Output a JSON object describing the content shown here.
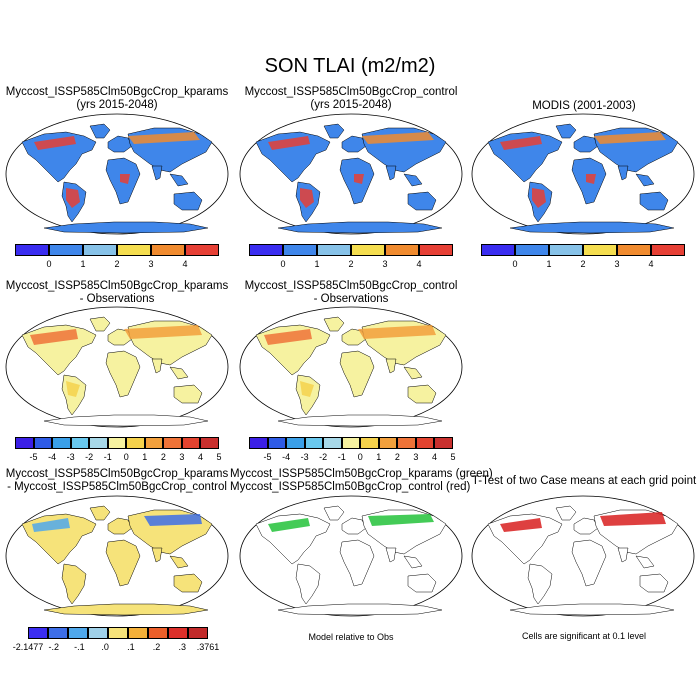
{
  "title": "SON TLAI (m2/m2)",
  "colors": {
    "abs": [
      "#3a2df0",
      "#3f86ea",
      "#87c2e8",
      "#f5de50",
      "#f08b2f",
      "#e64035"
    ],
    "diff": [
      "#3b1fe6",
      "#2e5be6",
      "#3a9fe8",
      "#69c8ee",
      "#a7d8e8",
      "#f6f2a0",
      "#f5d24c",
      "#f2a03c",
      "#ef7338",
      "#e3432f",
      "#c9302e"
    ],
    "casediff": [
      "#3b2df2",
      "#3d6ee8",
      "#4fa8ec",
      "#9fd0e8",
      "#f6e37a",
      "#f4b039",
      "#ec5f2a",
      "#dc2f2a",
      "#c22a2a"
    ],
    "ocean": "#ffffff",
    "land_outline": "#000000"
  },
  "panels": [
    {
      "id": "p1",
      "title1": "Myccost_ISSP585Clm50BgcCrop_kparams",
      "title2": "(yrs 2015-2048)",
      "fill": "#3f86ea"
    },
    {
      "id": "p2",
      "title1": "Myccost_ISSP585Clm50BgcCrop_control",
      "title2": "(yrs 2015-2048)",
      "fill": "#3f86ea"
    },
    {
      "id": "p3",
      "title1": "MODIS (2001-2003)",
      "title2": "",
      "fill": "#3f86ea"
    },
    {
      "id": "p4",
      "title1": "Myccost_ISSP585Clm50BgcCrop_kparams",
      "title2": "- Observations",
      "fill": "#f6f2a0"
    },
    {
      "id": "p5",
      "title1": "Myccost_ISSP585Clm50BgcCrop_control",
      "title2": "- Observations",
      "fill": "#f6f2a0"
    },
    {
      "id": "p7",
      "title1": "Myccost_ISSP585Clm50BgcCrop_kparams",
      "title2": "- Myccost_ISSP585Clm50BgcCrop_control",
      "fill": "#f6e37a"
    },
    {
      "id": "p8",
      "title1": "Myccost_ISSP585Clm50BgcCrop_kparams (green)",
      "title2": "Myccost_ISSP585Clm50BgcCrop_control (red)",
      "fill": "#ffffff"
    },
    {
      "id": "p9",
      "title1": "T-Test of two Case means at each grid point",
      "title2": "",
      "fill": "#ffffff"
    }
  ],
  "colorbars": {
    "abs_labels": [
      "0",
      "1",
      "2",
      "3",
      "4"
    ],
    "diff_labels": [
      "-5",
      "-4",
      "-3",
      "-2",
      "-1",
      "0",
      "1",
      "2",
      "3",
      "4",
      "5"
    ],
    "casediff_labels": [
      "-2.1477",
      "-.2",
      "-.1",
      ".0",
      ".1",
      ".2",
      ".3",
      ".3761"
    ]
  },
  "notes": {
    "model_relative": "Model relative to Obs",
    "significance": "Cells are significant at 0.1 level"
  }
}
